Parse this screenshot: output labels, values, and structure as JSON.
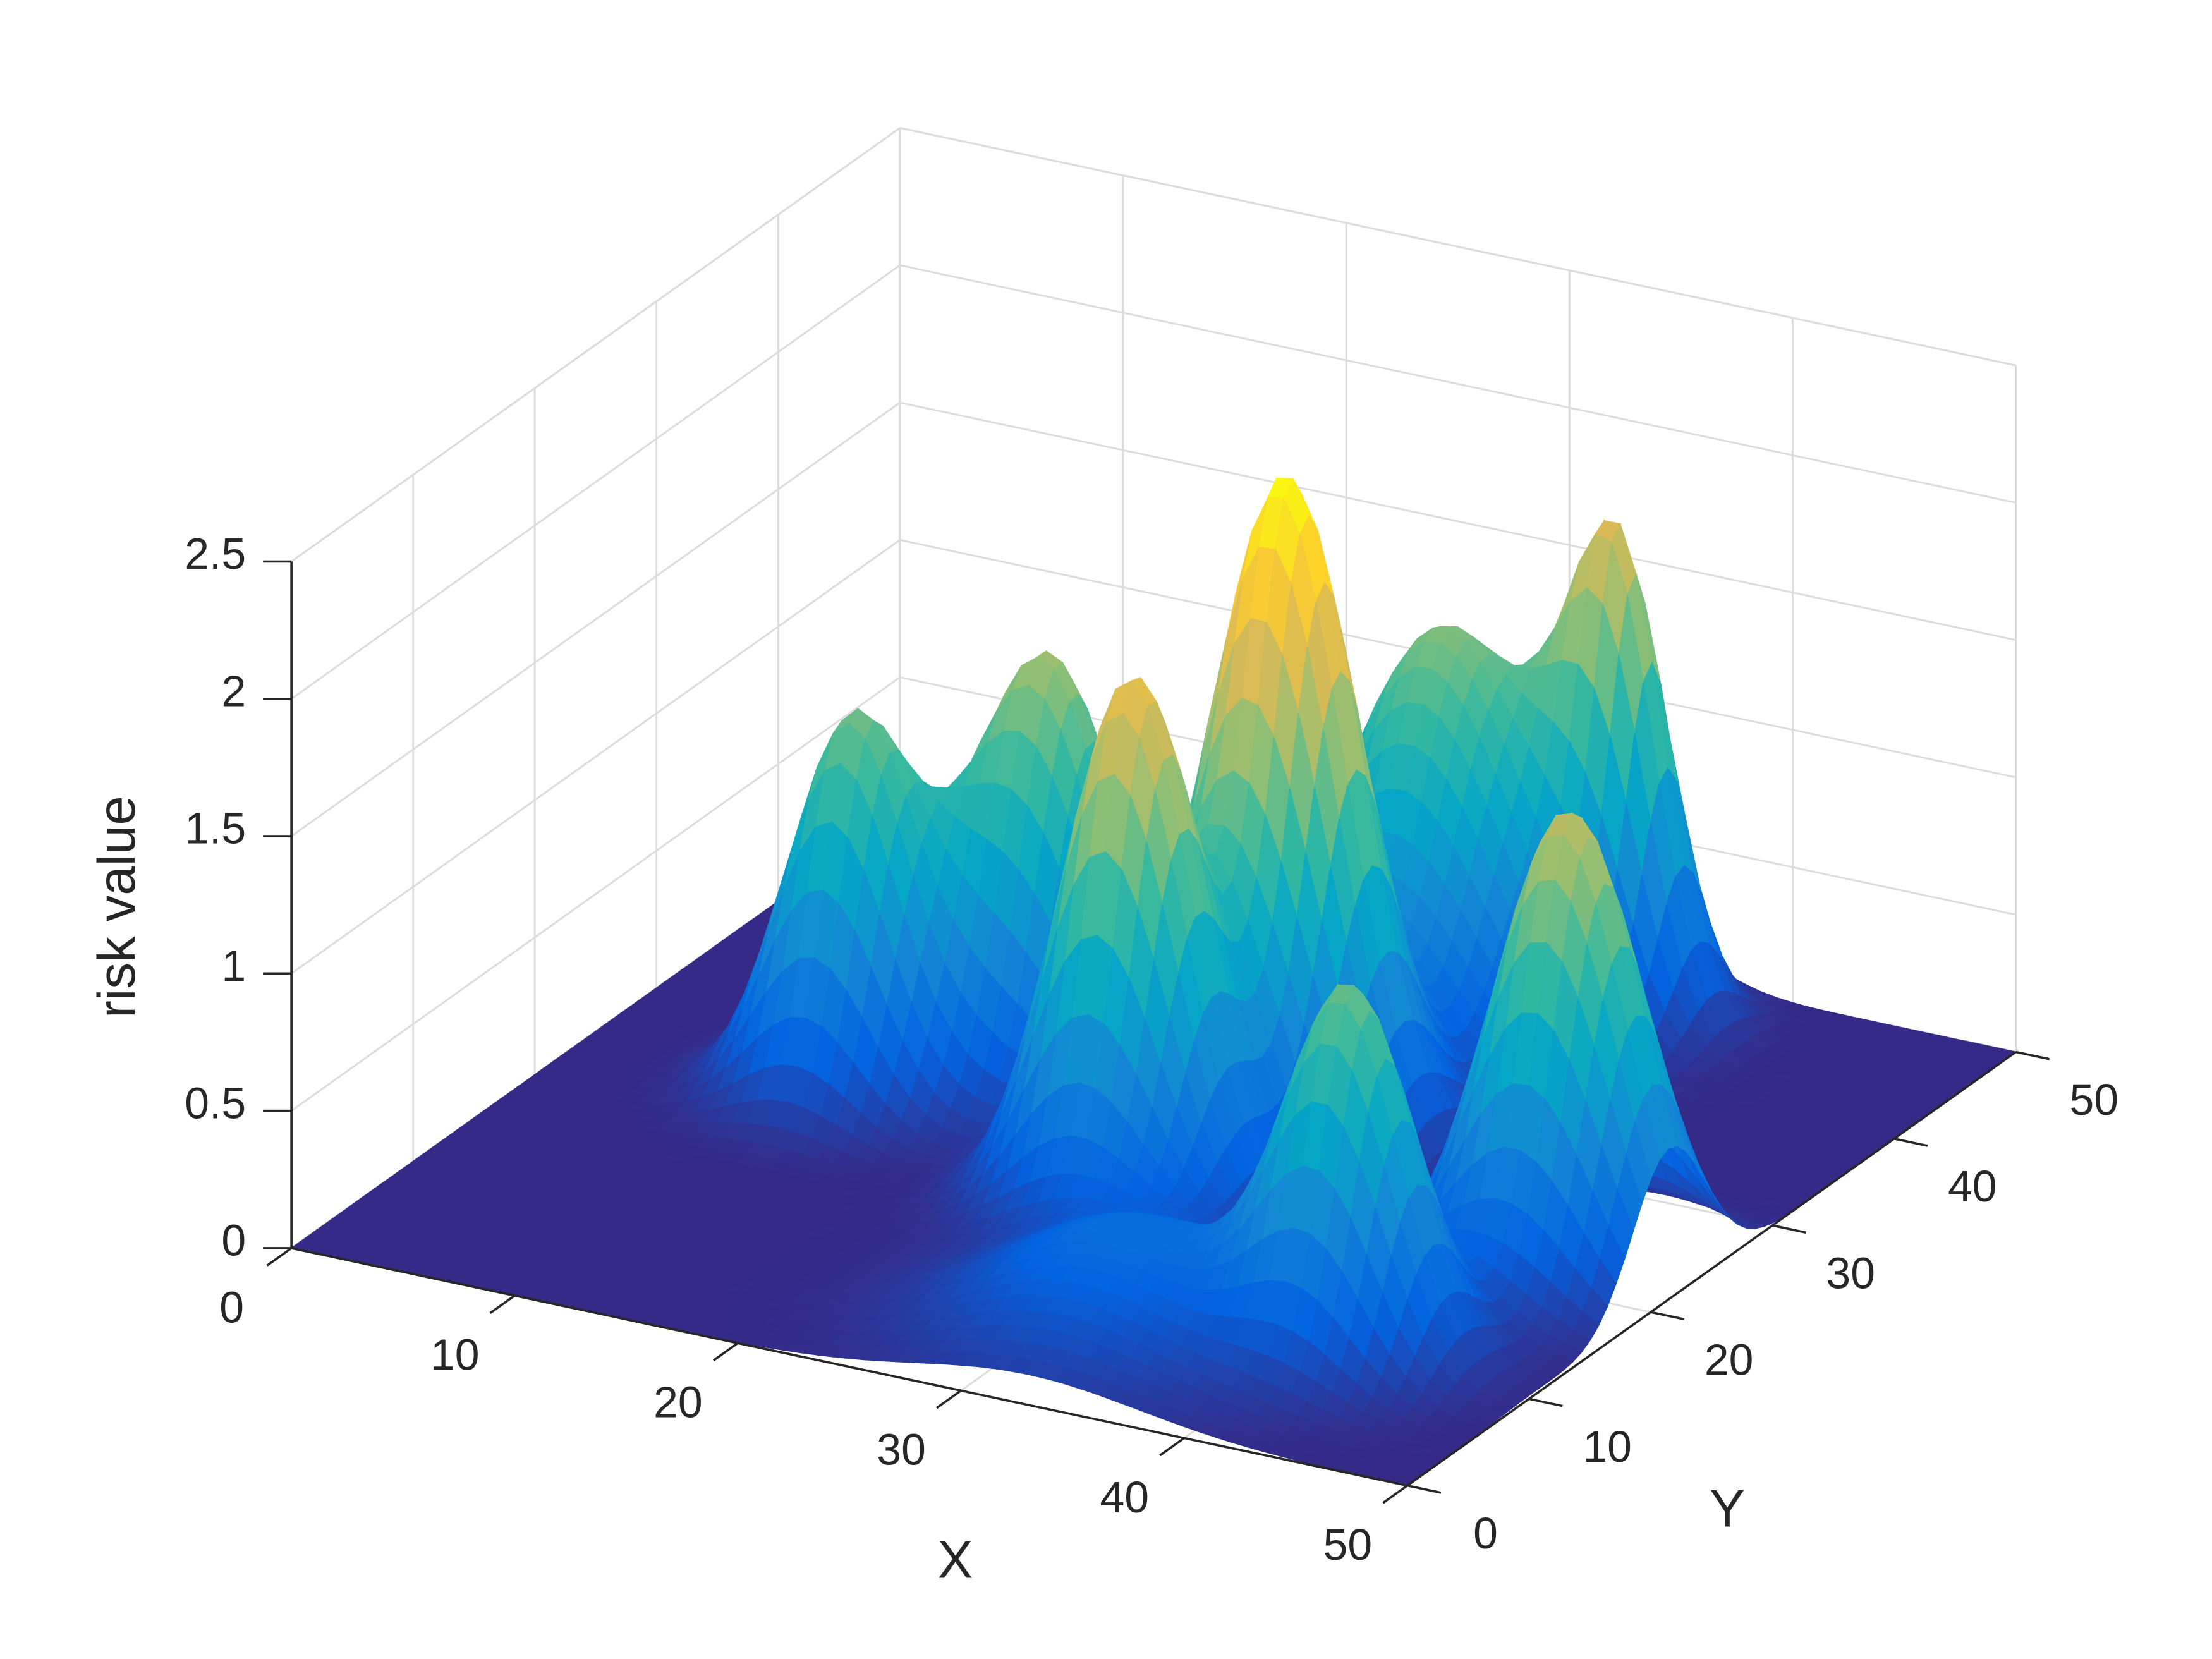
{
  "chart_data": {
    "type": "surface",
    "xlabel": "X",
    "ylabel": "Y",
    "zlabel": "risk value",
    "xlim": [
      0,
      50
    ],
    "ylim": [
      0,
      50
    ],
    "zlim": [
      0,
      2.5
    ],
    "xticks": [
      0,
      10,
      20,
      30,
      40,
      50
    ],
    "yticks": [
      0,
      10,
      20,
      30,
      40,
      50
    ],
    "zticks": [
      0,
      0.5,
      1,
      1.5,
      2,
      2.5
    ],
    "grid": true,
    "colormap": [
      "#352a87",
      "#0363e1",
      "#1485d4",
      "#06a7c6",
      "#38b99e",
      "#92bf73",
      "#d9ba56",
      "#fcce2e",
      "#f9fb0e"
    ],
    "peaks": [
      {
        "x": 12,
        "y": 24,
        "z": 1.35,
        "sigma": 2.6
      },
      {
        "x": 18,
        "y": 29,
        "z": 1.55,
        "sigma": 3
      },
      {
        "x": 27,
        "y": 19.5,
        "z": 1.9,
        "sigma": 2.8
      },
      {
        "x": 29,
        "y": 28.5,
        "z": 2.4,
        "sigma": 3
      },
      {
        "x": 29,
        "y": 41.5,
        "z": 1.45,
        "sigma": 4
      },
      {
        "x": 35,
        "y": 45,
        "z": 1.5,
        "sigma": 2
      },
      {
        "x": 45.5,
        "y": 21.5,
        "z": 1.7,
        "sigma": 3
      },
      {
        "x": 42,
        "y": 10,
        "z": 1.3,
        "sigma": 2.6
      },
      {
        "x": 33,
        "y": 8,
        "z": 0.4,
        "sigma": 5
      }
    ]
  }
}
